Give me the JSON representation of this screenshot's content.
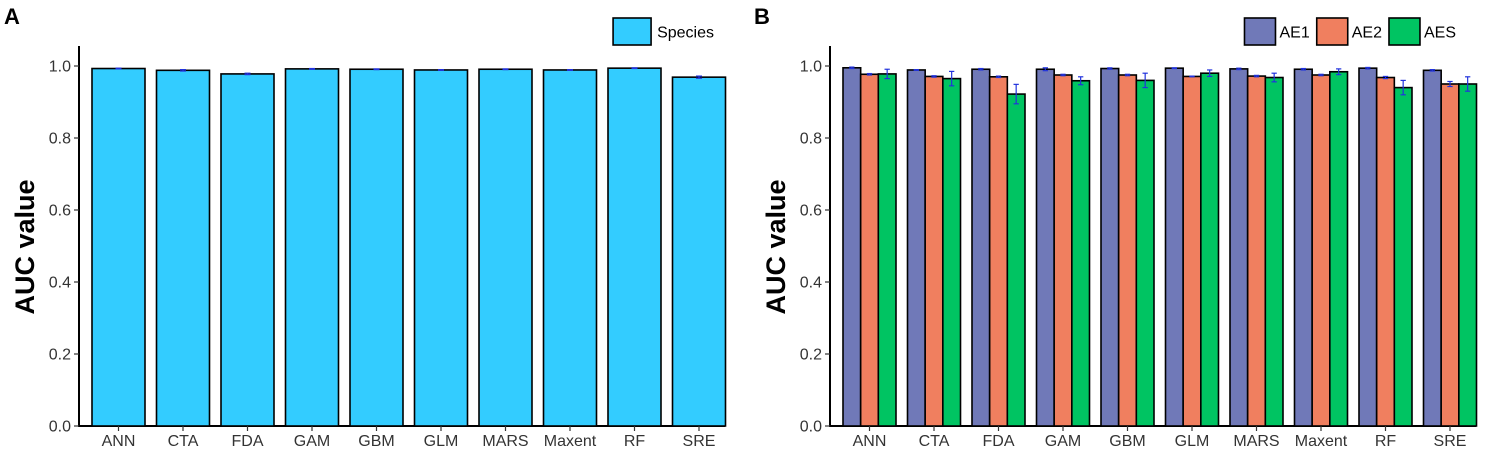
{
  "panels": [
    {
      "letter": "A"
    },
    {
      "letter": "B"
    }
  ],
  "colors": {
    "species": "#33ccff",
    "AE1": "#7079b8",
    "AE2": "#f07f5f",
    "AES": "#00c462",
    "error": "#2233dd",
    "edge": "#000000"
  },
  "chart_data": [
    {
      "type": "bar",
      "title": "",
      "xlabel": "",
      "ylabel": "AUC value",
      "ylim": [
        0,
        1.05
      ],
      "yticks": [
        "0.0",
        "0.2",
        "0.4",
        "0.6",
        "0.8",
        "1.0"
      ],
      "legend_position": "top-right",
      "categories": [
        "ANN",
        "CTA",
        "FDA",
        "GAM",
        "GBM",
        "GLM",
        "MARS",
        "Maxent",
        "RF",
        "SRE"
      ],
      "series": [
        {
          "name": "Species",
          "color_key": "species",
          "values": [
            0.993,
            0.988,
            0.978,
            0.992,
            0.991,
            0.989,
            0.991,
            0.989,
            0.994,
            0.969
          ],
          "errors": [
            0.001,
            0.002,
            0.002,
            0.001,
            0.001,
            0.001,
            0.001,
            0.001,
            0.001,
            0.003
          ]
        }
      ]
    },
    {
      "type": "bar",
      "title": "",
      "xlabel": "",
      "ylabel": "AUC value",
      "ylim": [
        0,
        1.05
      ],
      "yticks": [
        "0.0",
        "0.2",
        "0.4",
        "0.6",
        "0.8",
        "1.0"
      ],
      "legend_position": "top-right",
      "categories": [
        "ANN",
        "CTA",
        "FDA",
        "GAM",
        "GBM",
        "GLM",
        "MARS",
        "Maxent",
        "RF",
        "SRE"
      ],
      "series": [
        {
          "name": "AE1",
          "color_key": "AE1",
          "values": [
            0.995,
            0.989,
            0.991,
            0.991,
            0.993,
            0.994,
            0.992,
            0.991,
            0.994,
            0.988
          ],
          "errors": [
            0.002,
            0.001,
            0.002,
            0.004,
            0.002,
            0.001,
            0.002,
            0.002,
            0.002,
            0.002
          ]
        },
        {
          "name": "AE2",
          "color_key": "AE2",
          "values": [
            0.977,
            0.971,
            0.97,
            0.975,
            0.975,
            0.971,
            0.972,
            0.975,
            0.968,
            0.95
          ],
          "errors": [
            0.002,
            0.002,
            0.002,
            0.002,
            0.002,
            0.001,
            0.002,
            0.002,
            0.003,
            0.007
          ]
        },
        {
          "name": "AES",
          "color_key": "AES",
          "values": [
            0.978,
            0.965,
            0.922,
            0.959,
            0.96,
            0.98,
            0.968,
            0.984,
            0.94,
            0.95
          ],
          "errors": [
            0.013,
            0.02,
            0.027,
            0.011,
            0.02,
            0.009,
            0.012,
            0.008,
            0.02,
            0.02
          ]
        }
      ]
    }
  ]
}
